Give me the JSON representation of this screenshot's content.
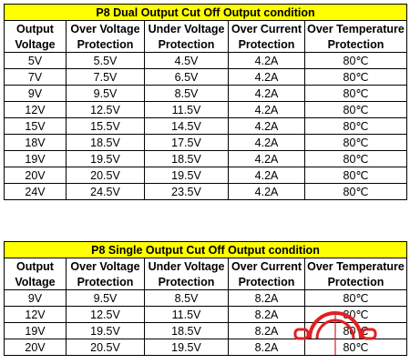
{
  "tables": [
    {
      "title": "P8 Dual Output Cut Off Output condition",
      "headers": [
        [
          "Output",
          "Voltage"
        ],
        [
          "Over Voltage",
          "Protection"
        ],
        [
          "Under Voltage",
          "Protection"
        ],
        [
          "Over Current",
          "Protection"
        ],
        [
          "Over Temperature",
          "Protection"
        ]
      ],
      "rows": [
        [
          "5V",
          "5.5V",
          "4.5V",
          "4.2A",
          "80℃"
        ],
        [
          "7V",
          "7.5V",
          "6.5V",
          "4.2A",
          "80℃"
        ],
        [
          "9V",
          "9.5V",
          "8.5V",
          "4.2A",
          "80℃"
        ],
        [
          "12V",
          "12.5V",
          "11.5V",
          "4.2A",
          "80℃"
        ],
        [
          "15V",
          "15.5V",
          "14.5V",
          "4.2A",
          "80℃"
        ],
        [
          "18V",
          "18.5V",
          "17.5V",
          "4.2A",
          "80℃"
        ],
        [
          "19V",
          "19.5V",
          "18.5V",
          "4.2A",
          "80℃"
        ],
        [
          "20V",
          "20.5V",
          "19.5V",
          "4.2A",
          "80℃"
        ],
        [
          "24V",
          "24.5V",
          "23.5V",
          "4.2A",
          "80℃"
        ]
      ]
    },
    {
      "title": "P8 Single Output Cut Off Output condition",
      "headers": [
        [
          "Output",
          "Voltage"
        ],
        [
          "Over Voltage",
          "Protection"
        ],
        [
          "Under Voltage",
          "Protection"
        ],
        [
          "Over Current",
          "Protection"
        ],
        [
          "Over Temperature",
          "Protection"
        ]
      ],
      "rows": [
        [
          "9V",
          "9.5V",
          "8.5V",
          "8.2A",
          "80℃"
        ],
        [
          "12V",
          "12.5V",
          "11.5V",
          "8.2A",
          "80℃"
        ],
        [
          "19V",
          "19.5V",
          "18.5V",
          "8.2A",
          "80℃"
        ],
        [
          "20V",
          "20.5V",
          "19.5V",
          "8.2A",
          "80℃"
        ]
      ]
    }
  ],
  "colors": {
    "title_background": "#ffff00",
    "watermark": "#e02020"
  },
  "watermark_icon": "red-watermark-logo-icon"
}
